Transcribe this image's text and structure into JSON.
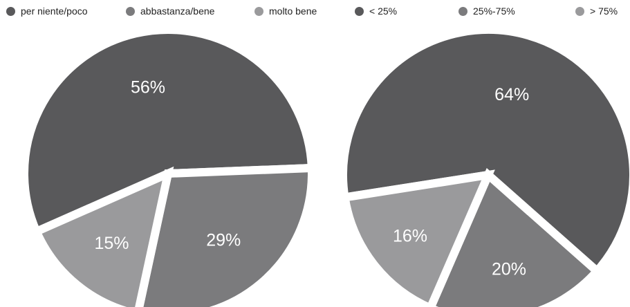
{
  "chart_data": [
    {
      "type": "pie",
      "title": "",
      "legend": "top",
      "slices": [
        {
          "name": "per niente/poco",
          "value": 56,
          "label": "56%",
          "color": "#59595b"
        },
        {
          "name": "abbastanza/bene",
          "value": 29,
          "label": "29%",
          "color": "#7b7b7d"
        },
        {
          "name": "molto bene",
          "value": 15,
          "label": "15%",
          "color": "#9a9a9c"
        }
      ]
    },
    {
      "type": "pie",
      "title": "",
      "legend": "top",
      "slices": [
        {
          "name": "< 25%",
          "value": 64,
          "label": "64%",
          "color": "#59595b"
        },
        {
          "name": "25%-75%",
          "value": 20,
          "label": "20%",
          "color": "#7b7b7d"
        },
        {
          "name": "> 75%",
          "value": 16,
          "label": "16%",
          "color": "#9a9a9c"
        }
      ]
    }
  ]
}
